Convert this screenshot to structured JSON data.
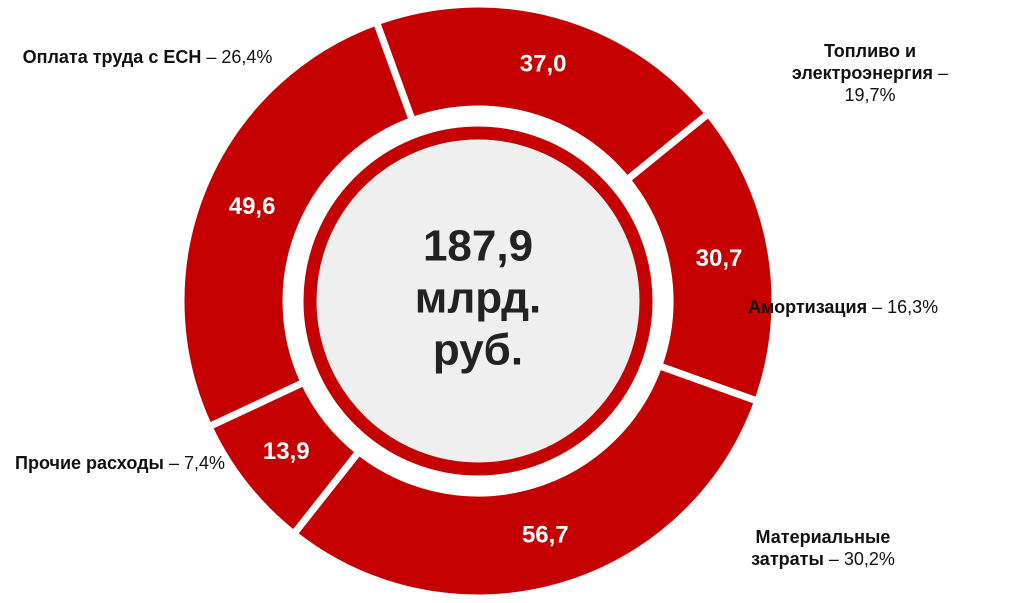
{
  "chart_data": {
    "type": "donut",
    "categories": [
      "Топливо и электроэнергия",
      "Амортизация",
      "Материальные затраты",
      "Прочие расходы",
      "Оплата труда с ЕСН"
    ],
    "values": [
      37.0,
      30.7,
      56.7,
      13.9,
      49.6
    ],
    "value_labels": [
      "37,0",
      "30,7",
      "56,7",
      "13,9",
      "49,6"
    ],
    "share_labels": [
      "– 19,7%",
      "– 16,3%",
      "– 30,2%",
      "– 7,4%",
      "– 26,4%"
    ],
    "center_lines": [
      "187,9",
      "млрд.",
      "руб."
    ],
    "color": "#c40000",
    "start_angle": -20
  }
}
